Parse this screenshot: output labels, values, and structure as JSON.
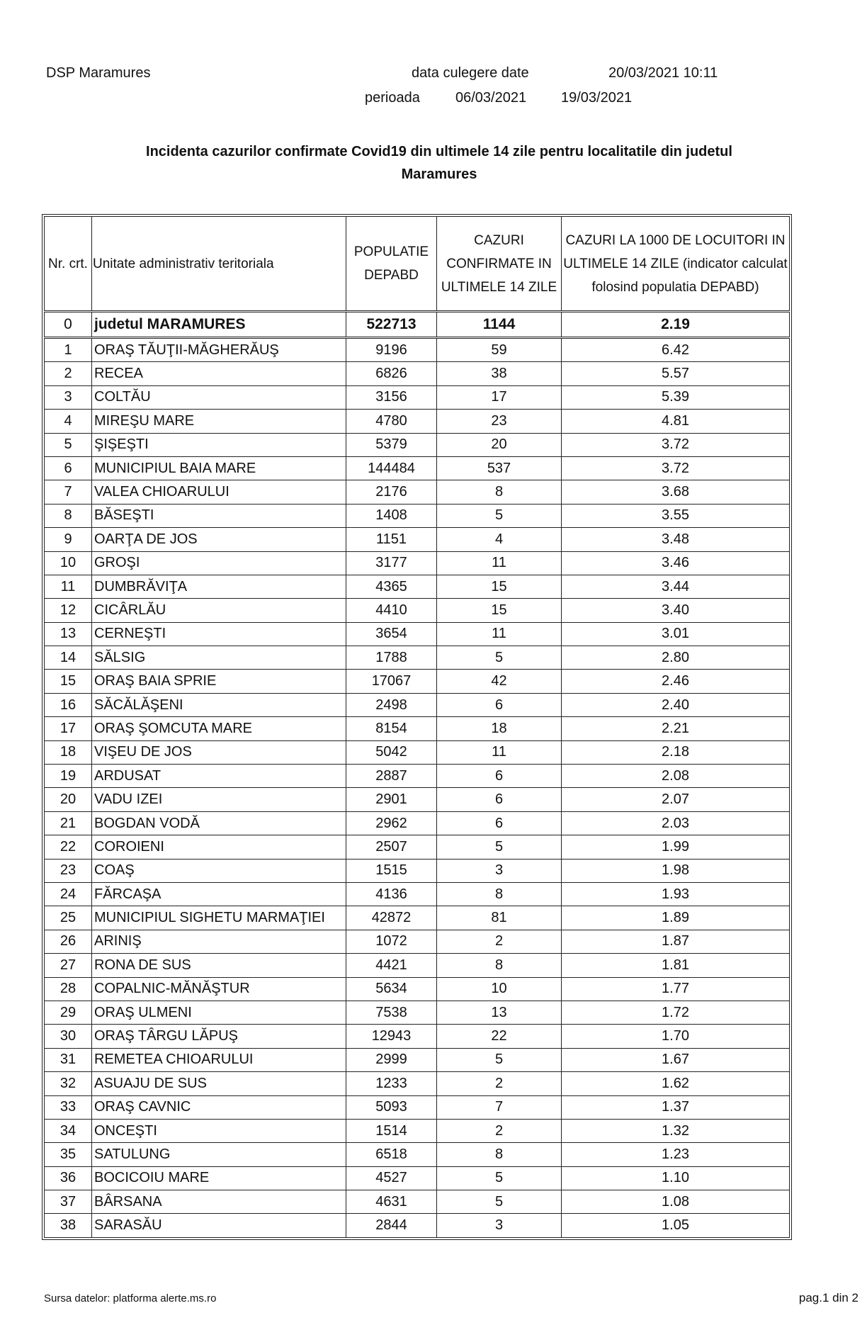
{
  "header": {
    "org": "DSP Maramures",
    "collection_label": "data culegere date",
    "collection_datetime": "20/03/2021 10:11",
    "period_label": "perioada",
    "period_start": "06/03/2021",
    "period_end": "19/03/2021"
  },
  "title_line1": "Incidenta cazurilor confirmate Covid19 din ultimele 14 zile pentru localitatile din judetul",
  "title_line2": "Maramures",
  "table": {
    "columns": [
      "Nr. crt.",
      "Unitate administrativ teritoriala",
      "POPULATIE DEPABD",
      "CAZURI CONFIRMATE IN ULTIMELE 14 ZILE",
      "CAZURI LA 1000 DE LOCUITORI IN ULTIMELE 14 ZILE (indicator calculat folosind populatia DEPABD)"
    ],
    "total": {
      "nr": "0",
      "name": "judetul MARAMURES",
      "population": "522713",
      "cases": "1144",
      "rate": "2.19"
    },
    "rows": [
      {
        "nr": "1",
        "name": "ORAŞ TĂUŢII-MĂGHERĂUŞ",
        "population": "9196",
        "cases": "59",
        "rate": "6.42"
      },
      {
        "nr": "2",
        "name": "RECEA",
        "population": "6826",
        "cases": "38",
        "rate": "5.57"
      },
      {
        "nr": "3",
        "name": "COLTĂU",
        "population": "3156",
        "cases": "17",
        "rate": "5.39"
      },
      {
        "nr": "4",
        "name": "MIREŞU MARE",
        "population": "4780",
        "cases": "23",
        "rate": "4.81"
      },
      {
        "nr": "5",
        "name": "ŞIŞEŞTI",
        "population": "5379",
        "cases": "20",
        "rate": "3.72"
      },
      {
        "nr": "6",
        "name": "MUNICIPIUL BAIA MARE",
        "population": "144484",
        "cases": "537",
        "rate": "3.72"
      },
      {
        "nr": "7",
        "name": "VALEA CHIOARULUI",
        "population": "2176",
        "cases": "8",
        "rate": "3.68"
      },
      {
        "nr": "8",
        "name": "BĂSEŞTI",
        "population": "1408",
        "cases": "5",
        "rate": "3.55"
      },
      {
        "nr": "9",
        "name": "OARŢA DE JOS",
        "population": "1151",
        "cases": "4",
        "rate": "3.48"
      },
      {
        "nr": "10",
        "name": "GROŞI",
        "population": "3177",
        "cases": "11",
        "rate": "3.46"
      },
      {
        "nr": "11",
        "name": "DUMBRĂVIŢA",
        "population": "4365",
        "cases": "15",
        "rate": "3.44"
      },
      {
        "nr": "12",
        "name": "CICÂRLĂU",
        "population": "4410",
        "cases": "15",
        "rate": "3.40"
      },
      {
        "nr": "13",
        "name": "CERNEŞTI",
        "population": "3654",
        "cases": "11",
        "rate": "3.01"
      },
      {
        "nr": "14",
        "name": "SĂLSIG",
        "population": "1788",
        "cases": "5",
        "rate": "2.80"
      },
      {
        "nr": "15",
        "name": "ORAŞ BAIA SPRIE",
        "population": "17067",
        "cases": "42",
        "rate": "2.46"
      },
      {
        "nr": "16",
        "name": "SĂCĂLĂŞENI",
        "population": "2498",
        "cases": "6",
        "rate": "2.40"
      },
      {
        "nr": "17",
        "name": "ORAŞ ŞOMCUTA MARE",
        "population": "8154",
        "cases": "18",
        "rate": "2.21"
      },
      {
        "nr": "18",
        "name": "VIŞEU DE JOS",
        "population": "5042",
        "cases": "11",
        "rate": "2.18"
      },
      {
        "nr": "19",
        "name": "ARDUSAT",
        "population": "2887",
        "cases": "6",
        "rate": "2.08"
      },
      {
        "nr": "20",
        "name": "VADU IZEI",
        "population": "2901",
        "cases": "6",
        "rate": "2.07"
      },
      {
        "nr": "21",
        "name": "BOGDAN VODĂ",
        "population": "2962",
        "cases": "6",
        "rate": "2.03"
      },
      {
        "nr": "22",
        "name": "COROIENI",
        "population": "2507",
        "cases": "5",
        "rate": "1.99"
      },
      {
        "nr": "23",
        "name": "COAŞ",
        "population": "1515",
        "cases": "3",
        "rate": "1.98"
      },
      {
        "nr": "24",
        "name": "FĂRCAŞA",
        "population": "4136",
        "cases": "8",
        "rate": "1.93"
      },
      {
        "nr": "25",
        "name": "MUNICIPIUL SIGHETU MARMAŢIEI",
        "population": "42872",
        "cases": "81",
        "rate": "1.89"
      },
      {
        "nr": "26",
        "name": "ARINIŞ",
        "population": "1072",
        "cases": "2",
        "rate": "1.87"
      },
      {
        "nr": "27",
        "name": "RONA DE SUS",
        "population": "4421",
        "cases": "8",
        "rate": "1.81"
      },
      {
        "nr": "28",
        "name": "COPALNIC-MĂNĂŞTUR",
        "population": "5634",
        "cases": "10",
        "rate": "1.77"
      },
      {
        "nr": "29",
        "name": "ORAŞ ULMENI",
        "population": "7538",
        "cases": "13",
        "rate": "1.72"
      },
      {
        "nr": "30",
        "name": "ORAŞ TÂRGU LĂPUŞ",
        "population": "12943",
        "cases": "22",
        "rate": "1.70"
      },
      {
        "nr": "31",
        "name": "REMETEA CHIOARULUI",
        "population": "2999",
        "cases": "5",
        "rate": "1.67"
      },
      {
        "nr": "32",
        "name": "ASUAJU DE SUS",
        "population": "1233",
        "cases": "2",
        "rate": "1.62"
      },
      {
        "nr": "33",
        "name": "ORAŞ CAVNIC",
        "population": "5093",
        "cases": "7",
        "rate": "1.37"
      },
      {
        "nr": "34",
        "name": "ONCEŞTI",
        "population": "1514",
        "cases": "2",
        "rate": "1.32"
      },
      {
        "nr": "35",
        "name": "SATULUNG",
        "population": "6518",
        "cases": "8",
        "rate": "1.23"
      },
      {
        "nr": "36",
        "name": "BOCICOIU MARE",
        "population": "4527",
        "cases": "5",
        "rate": "1.10"
      },
      {
        "nr": "37",
        "name": "BÂRSANA",
        "population": "4631",
        "cases": "5",
        "rate": "1.08"
      },
      {
        "nr": "38",
        "name": "SARASĂU",
        "population": "2844",
        "cases": "3",
        "rate": "1.05"
      }
    ]
  },
  "footer": {
    "source": "Sursa datelor:  platforma  alerte.ms.ro",
    "page": "pag.1 din 2"
  }
}
